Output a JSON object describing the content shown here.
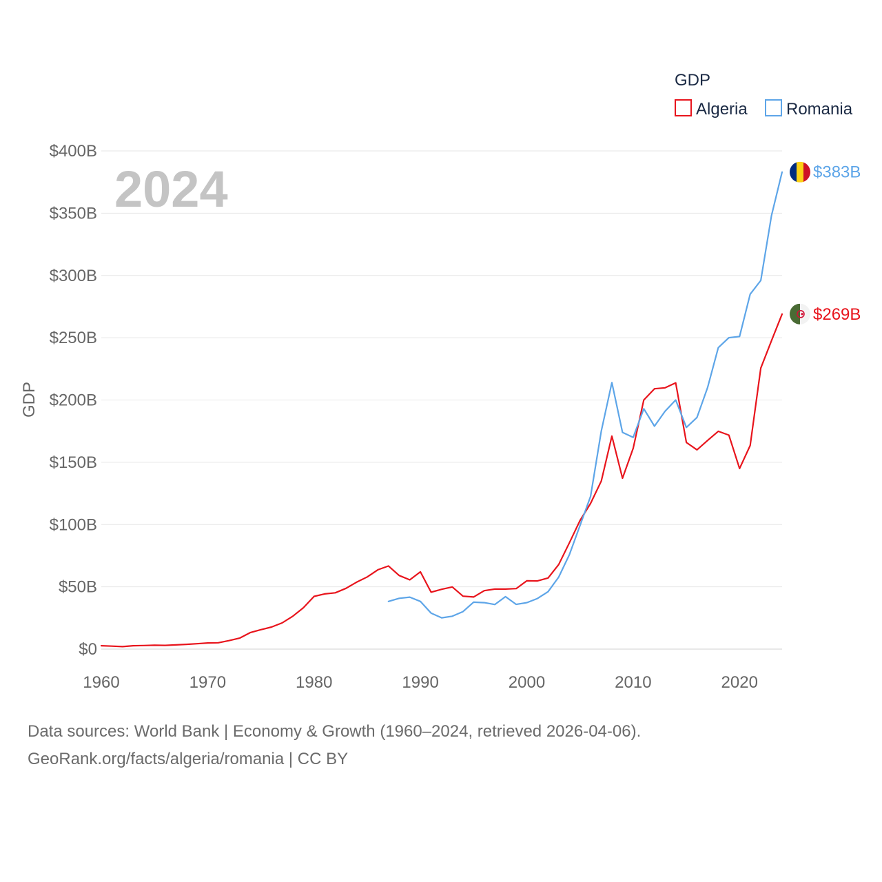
{
  "chart_data": {
    "type": "line",
    "legend_title": "GDP",
    "year_label": "2024",
    "ylabel": "GDP",
    "xlabel": "",
    "xlim": [
      1960,
      2024
    ],
    "ylim": [
      0,
      400
    ],
    "y_unit": "billion USD",
    "x_ticks": [
      1960,
      1970,
      1980,
      1990,
      2000,
      2010,
      2020
    ],
    "x_tick_labels": [
      "1960",
      "1970",
      "1980",
      "1990",
      "2000",
      "2010",
      "2020"
    ],
    "y_ticks": [
      0,
      50,
      100,
      150,
      200,
      250,
      300,
      350,
      400
    ],
    "y_tick_labels": [
      "$0",
      "$50B",
      "$100B",
      "$150B",
      "$200B",
      "$250B",
      "$300B",
      "$350B",
      "$400B"
    ],
    "series": [
      {
        "name": "Algeria",
        "color": "#e8141c",
        "end_label": "$269B",
        "flag": "algeria-flag",
        "x": [
          1960,
          1961,
          1962,
          1963,
          1964,
          1965,
          1966,
          1967,
          1968,
          1969,
          1970,
          1971,
          1972,
          1973,
          1974,
          1975,
          1976,
          1977,
          1978,
          1979,
          1980,
          1981,
          1982,
          1983,
          1984,
          1985,
          1986,
          1987,
          1988,
          1989,
          1990,
          1991,
          1992,
          1993,
          1994,
          1995,
          1996,
          1997,
          1998,
          1999,
          2000,
          2001,
          2002,
          2003,
          2004,
          2005,
          2006,
          2007,
          2008,
          2009,
          2010,
          2011,
          2012,
          2013,
          2014,
          2015,
          2016,
          2017,
          2018,
          2019,
          2020,
          2021,
          2022,
          2023,
          2024
        ],
        "values": [
          2.7,
          2.4,
          2.0,
          2.7,
          2.9,
          3.1,
          3.0,
          3.4,
          3.8,
          4.3,
          4.9,
          5.1,
          6.8,
          8.8,
          13.2,
          15.6,
          17.7,
          21.0,
          26.4,
          33.2,
          42.3,
          44.3,
          45.2,
          48.8,
          53.7,
          57.9,
          63.7,
          66.7,
          59.1,
          55.6,
          62.0,
          45.7,
          48.0,
          49.9,
          42.5,
          41.8,
          46.9,
          48.2,
          48.2,
          48.6,
          54.8,
          54.7,
          57.1,
          67.9,
          85.3,
          103.2,
          117.0,
          134.9,
          171.0,
          137.2,
          161.2,
          200.0,
          209.0,
          209.8,
          213.8,
          165.9,
          160.0,
          167.5,
          174.9,
          171.8,
          145.0,
          163.5,
          225.6,
          247.6,
          269.0
        ]
      },
      {
        "name": "Romania",
        "color": "#5da5e8",
        "end_label": "$383B",
        "flag": "romania-flag",
        "x": [
          1987,
          1988,
          1989,
          1990,
          1991,
          1992,
          1993,
          1994,
          1995,
          1996,
          1997,
          1998,
          1999,
          2000,
          2001,
          2002,
          2003,
          2004,
          2005,
          2006,
          2007,
          2008,
          2009,
          2010,
          2011,
          2012,
          2013,
          2014,
          2015,
          2016,
          2017,
          2018,
          2019,
          2020,
          2021,
          2022,
          2023,
          2024
        ],
        "values": [
          38.3,
          40.8,
          41.7,
          38.3,
          28.9,
          25.1,
          26.4,
          30.1,
          37.7,
          37.3,
          35.8,
          42.1,
          35.9,
          37.3,
          40.6,
          46.1,
          57.8,
          75.8,
          99.2,
          122.7,
          175.0,
          214.0,
          174.0,
          170.0,
          193.0,
          179.0,
          191.0,
          200.0,
          178.0,
          186.0,
          210.0,
          242.0,
          250.0,
          251.0,
          285.0,
          296.0,
          348.0,
          383.0
        ]
      }
    ]
  },
  "footer": {
    "line1": "Data sources: World Bank | Economy & Growth (1960–2024, retrieved 2026-04-06).",
    "line2": "GeoRank.org/facts/algeria/romania | CC BY"
  }
}
